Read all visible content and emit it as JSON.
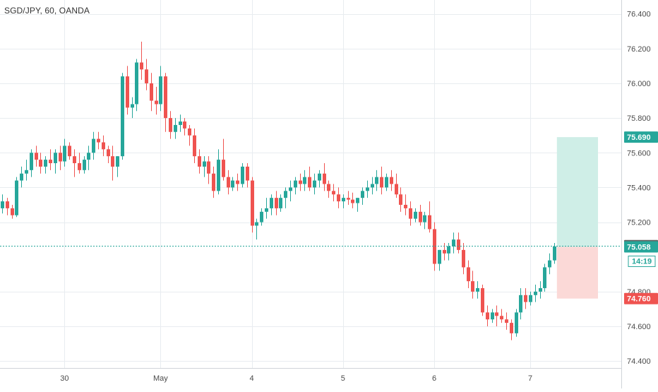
{
  "header": {
    "symbol_label": "SGD/JPY, 60, OANDA"
  },
  "colors": {
    "up": "#26a69a",
    "down": "#ef5350",
    "grid": "#e8ecf0",
    "axis_text": "#4a4a4a",
    "target_zone": "#cfeee7",
    "stop_zone": "#fbd9d7",
    "price_line": "#26a69a",
    "last_price_label": "#616161"
  },
  "chart_data": {
    "type": "candlestick",
    "ylim": [
      74.36,
      76.48
    ],
    "y_ticks": [
      "76.400",
      "76.200",
      "76.000",
      "75.800",
      "75.600",
      "75.400",
      "75.200",
      "74.800",
      "74.600",
      "74.400"
    ],
    "x_ticks": [
      {
        "label": "30",
        "bar": 13
      },
      {
        "label": "May",
        "bar": 33
      },
      {
        "label": "4",
        "bar": 52
      },
      {
        "label": "5",
        "bar": 71
      },
      {
        "label": "6",
        "bar": 90
      },
      {
        "label": "7",
        "bar": 110
      }
    ],
    "candles": [
      [
        75.28,
        75.36,
        75.25,
        75.32
      ],
      [
        75.32,
        75.34,
        75.24,
        75.28
      ],
      [
        75.28,
        75.3,
        75.22,
        75.24
      ],
      [
        75.24,
        75.46,
        75.23,
        75.44
      ],
      [
        75.44,
        75.52,
        75.4,
        75.48
      ],
      [
        75.48,
        75.56,
        75.44,
        75.5
      ],
      [
        75.5,
        75.62,
        75.46,
        75.6
      ],
      [
        75.6,
        75.64,
        75.52,
        75.56
      ],
      [
        75.56,
        75.6,
        75.48,
        75.52
      ],
      [
        75.52,
        75.58,
        75.48,
        75.56
      ],
      [
        75.56,
        75.62,
        75.5,
        75.54
      ],
      [
        75.54,
        75.62,
        75.48,
        75.6
      ],
      [
        75.6,
        75.64,
        75.5,
        75.55
      ],
      [
        75.55,
        75.68,
        75.52,
        75.64
      ],
      [
        75.64,
        75.66,
        75.56,
        75.58
      ],
      [
        75.58,
        75.62,
        75.46,
        75.54
      ],
      [
        75.54,
        75.6,
        75.48,
        75.5
      ],
      [
        75.5,
        75.58,
        75.48,
        75.56
      ],
      [
        75.56,
        75.64,
        75.5,
        75.6
      ],
      [
        75.6,
        75.72,
        75.56,
        75.68
      ],
      [
        75.68,
        75.72,
        75.62,
        75.66
      ],
      [
        75.66,
        75.7,
        75.58,
        75.62
      ],
      [
        75.62,
        75.64,
        75.54,
        75.58
      ],
      [
        75.58,
        75.64,
        75.44,
        75.52
      ],
      [
        75.52,
        75.58,
        75.46,
        75.58
      ],
      [
        75.58,
        76.06,
        75.56,
        76.04
      ],
      [
        76.04,
        76.1,
        75.82,
        75.86
      ],
      [
        75.86,
        75.92,
        75.8,
        75.88
      ],
      [
        75.88,
        76.14,
        75.84,
        76.12
      ],
      [
        76.12,
        76.24,
        76.02,
        76.08
      ],
      [
        76.08,
        76.14,
        75.96,
        76.0
      ],
      [
        76.0,
        76.06,
        75.84,
        75.9
      ],
      [
        75.9,
        75.98,
        75.82,
        75.88
      ],
      [
        75.88,
        76.1,
        75.84,
        76.04
      ],
      [
        76.04,
        76.06,
        75.72,
        75.8
      ],
      [
        75.8,
        75.84,
        75.68,
        75.72
      ],
      [
        75.72,
        75.8,
        75.68,
        75.76
      ],
      [
        75.76,
        75.82,
        75.72,
        75.78
      ],
      [
        75.78,
        75.8,
        75.7,
        75.74
      ],
      [
        75.74,
        75.76,
        75.64,
        75.7
      ],
      [
        75.7,
        75.74,
        75.54,
        75.58
      ],
      [
        75.58,
        75.62,
        75.48,
        75.52
      ],
      [
        75.52,
        75.58,
        75.46,
        75.55
      ],
      [
        75.55,
        75.58,
        75.42,
        75.48
      ],
      [
        75.48,
        75.52,
        75.34,
        75.38
      ],
      [
        75.38,
        75.62,
        75.36,
        75.56
      ],
      [
        75.56,
        75.68,
        75.44,
        75.46
      ],
      [
        75.46,
        75.5,
        75.36,
        75.4
      ],
      [
        75.4,
        75.46,
        75.38,
        75.44
      ],
      [
        75.44,
        75.48,
        75.38,
        75.42
      ],
      [
        75.42,
        75.54,
        75.4,
        75.52
      ],
      [
        75.52,
        75.54,
        75.4,
        75.44
      ],
      [
        75.44,
        75.46,
        75.14,
        75.18
      ],
      [
        75.18,
        75.22,
        75.1,
        75.2
      ],
      [
        75.2,
        75.28,
        75.18,
        75.26
      ],
      [
        75.26,
        75.34,
        75.22,
        75.28
      ],
      [
        75.28,
        75.36,
        75.24,
        75.34
      ],
      [
        75.34,
        75.38,
        75.24,
        75.28
      ],
      [
        75.28,
        75.36,
        75.26,
        75.34
      ],
      [
        75.34,
        75.4,
        75.28,
        75.38
      ],
      [
        75.38,
        75.44,
        75.32,
        75.4
      ],
      [
        75.4,
        75.46,
        75.36,
        75.44
      ],
      [
        75.44,
        75.48,
        75.38,
        75.42
      ],
      [
        75.42,
        75.5,
        75.38,
        75.46
      ],
      [
        75.46,
        75.52,
        75.38,
        75.4
      ],
      [
        75.4,
        75.48,
        75.36,
        75.44
      ],
      [
        75.44,
        75.5,
        75.4,
        75.48
      ],
      [
        75.48,
        75.54,
        75.38,
        75.42
      ],
      [
        75.42,
        75.44,
        75.34,
        75.38
      ],
      [
        75.38,
        75.42,
        75.32,
        75.36
      ],
      [
        75.36,
        75.4,
        75.28,
        75.32
      ],
      [
        75.32,
        75.36,
        75.28,
        75.34
      ],
      [
        75.34,
        75.38,
        75.3,
        75.33
      ],
      [
        75.33,
        75.37,
        75.28,
        75.31
      ],
      [
        75.31,
        75.34,
        75.26,
        75.34
      ],
      [
        75.34,
        75.4,
        75.3,
        75.38
      ],
      [
        75.38,
        75.44,
        75.34,
        75.4
      ],
      [
        75.4,
        75.46,
        75.36,
        75.42
      ],
      [
        75.42,
        75.5,
        75.38,
        75.46
      ],
      [
        75.46,
        75.52,
        75.36,
        75.4
      ],
      [
        75.4,
        75.48,
        75.38,
        75.46
      ],
      [
        75.46,
        75.5,
        75.38,
        75.42
      ],
      [
        75.42,
        75.48,
        75.34,
        75.36
      ],
      [
        75.36,
        75.4,
        75.26,
        75.3
      ],
      [
        75.3,
        75.36,
        75.24,
        75.28
      ],
      [
        75.28,
        75.32,
        75.18,
        75.22
      ],
      [
        75.22,
        75.28,
        75.2,
        75.26
      ],
      [
        75.26,
        75.3,
        75.18,
        75.2
      ],
      [
        75.2,
        75.26,
        75.16,
        75.24
      ],
      [
        75.24,
        75.32,
        75.14,
        75.16
      ],
      [
        75.16,
        75.2,
        74.92,
        74.96
      ],
      [
        74.96,
        75.04,
        74.92,
        75.04
      ],
      [
        75.04,
        75.08,
        74.98,
        75.02
      ],
      [
        75.02,
        75.08,
        74.98,
        75.06
      ],
      [
        75.06,
        75.14,
        75.02,
        75.1
      ],
      [
        75.1,
        75.14,
        75.02,
        75.04
      ],
      [
        75.04,
        75.08,
        74.9,
        74.94
      ],
      [
        74.94,
        74.98,
        74.82,
        74.86
      ],
      [
        74.86,
        74.92,
        74.76,
        74.8
      ],
      [
        74.8,
        74.86,
        74.76,
        74.82
      ],
      [
        74.82,
        74.84,
        74.66,
        74.68
      ],
      [
        74.68,
        74.72,
        74.6,
        74.64
      ],
      [
        74.64,
        74.7,
        74.62,
        74.68
      ],
      [
        74.68,
        74.72,
        74.6,
        74.66
      ],
      [
        74.66,
        74.7,
        74.62,
        74.64
      ],
      [
        74.64,
        74.68,
        74.58,
        74.62
      ],
      [
        74.62,
        74.64,
        74.52,
        74.56
      ],
      [
        74.56,
        74.7,
        74.54,
        74.68
      ],
      [
        74.68,
        74.82,
        74.64,
        74.78
      ],
      [
        74.78,
        74.82,
        74.7,
        74.74
      ],
      [
        74.74,
        74.8,
        74.72,
        74.78
      ],
      [
        74.78,
        74.84,
        74.74,
        74.8
      ],
      [
        74.8,
        74.86,
        74.76,
        74.82
      ],
      [
        74.82,
        74.96,
        74.8,
        74.94
      ],
      [
        74.94,
        75.02,
        74.9,
        74.98
      ],
      [
        74.98,
        75.08,
        74.96,
        75.06
      ]
    ],
    "position": {
      "entry": "75.058",
      "target": "75.690",
      "stop": "74.760",
      "start_bar": 116
    },
    "last_price": "75.065",
    "countdown": "14:19"
  }
}
